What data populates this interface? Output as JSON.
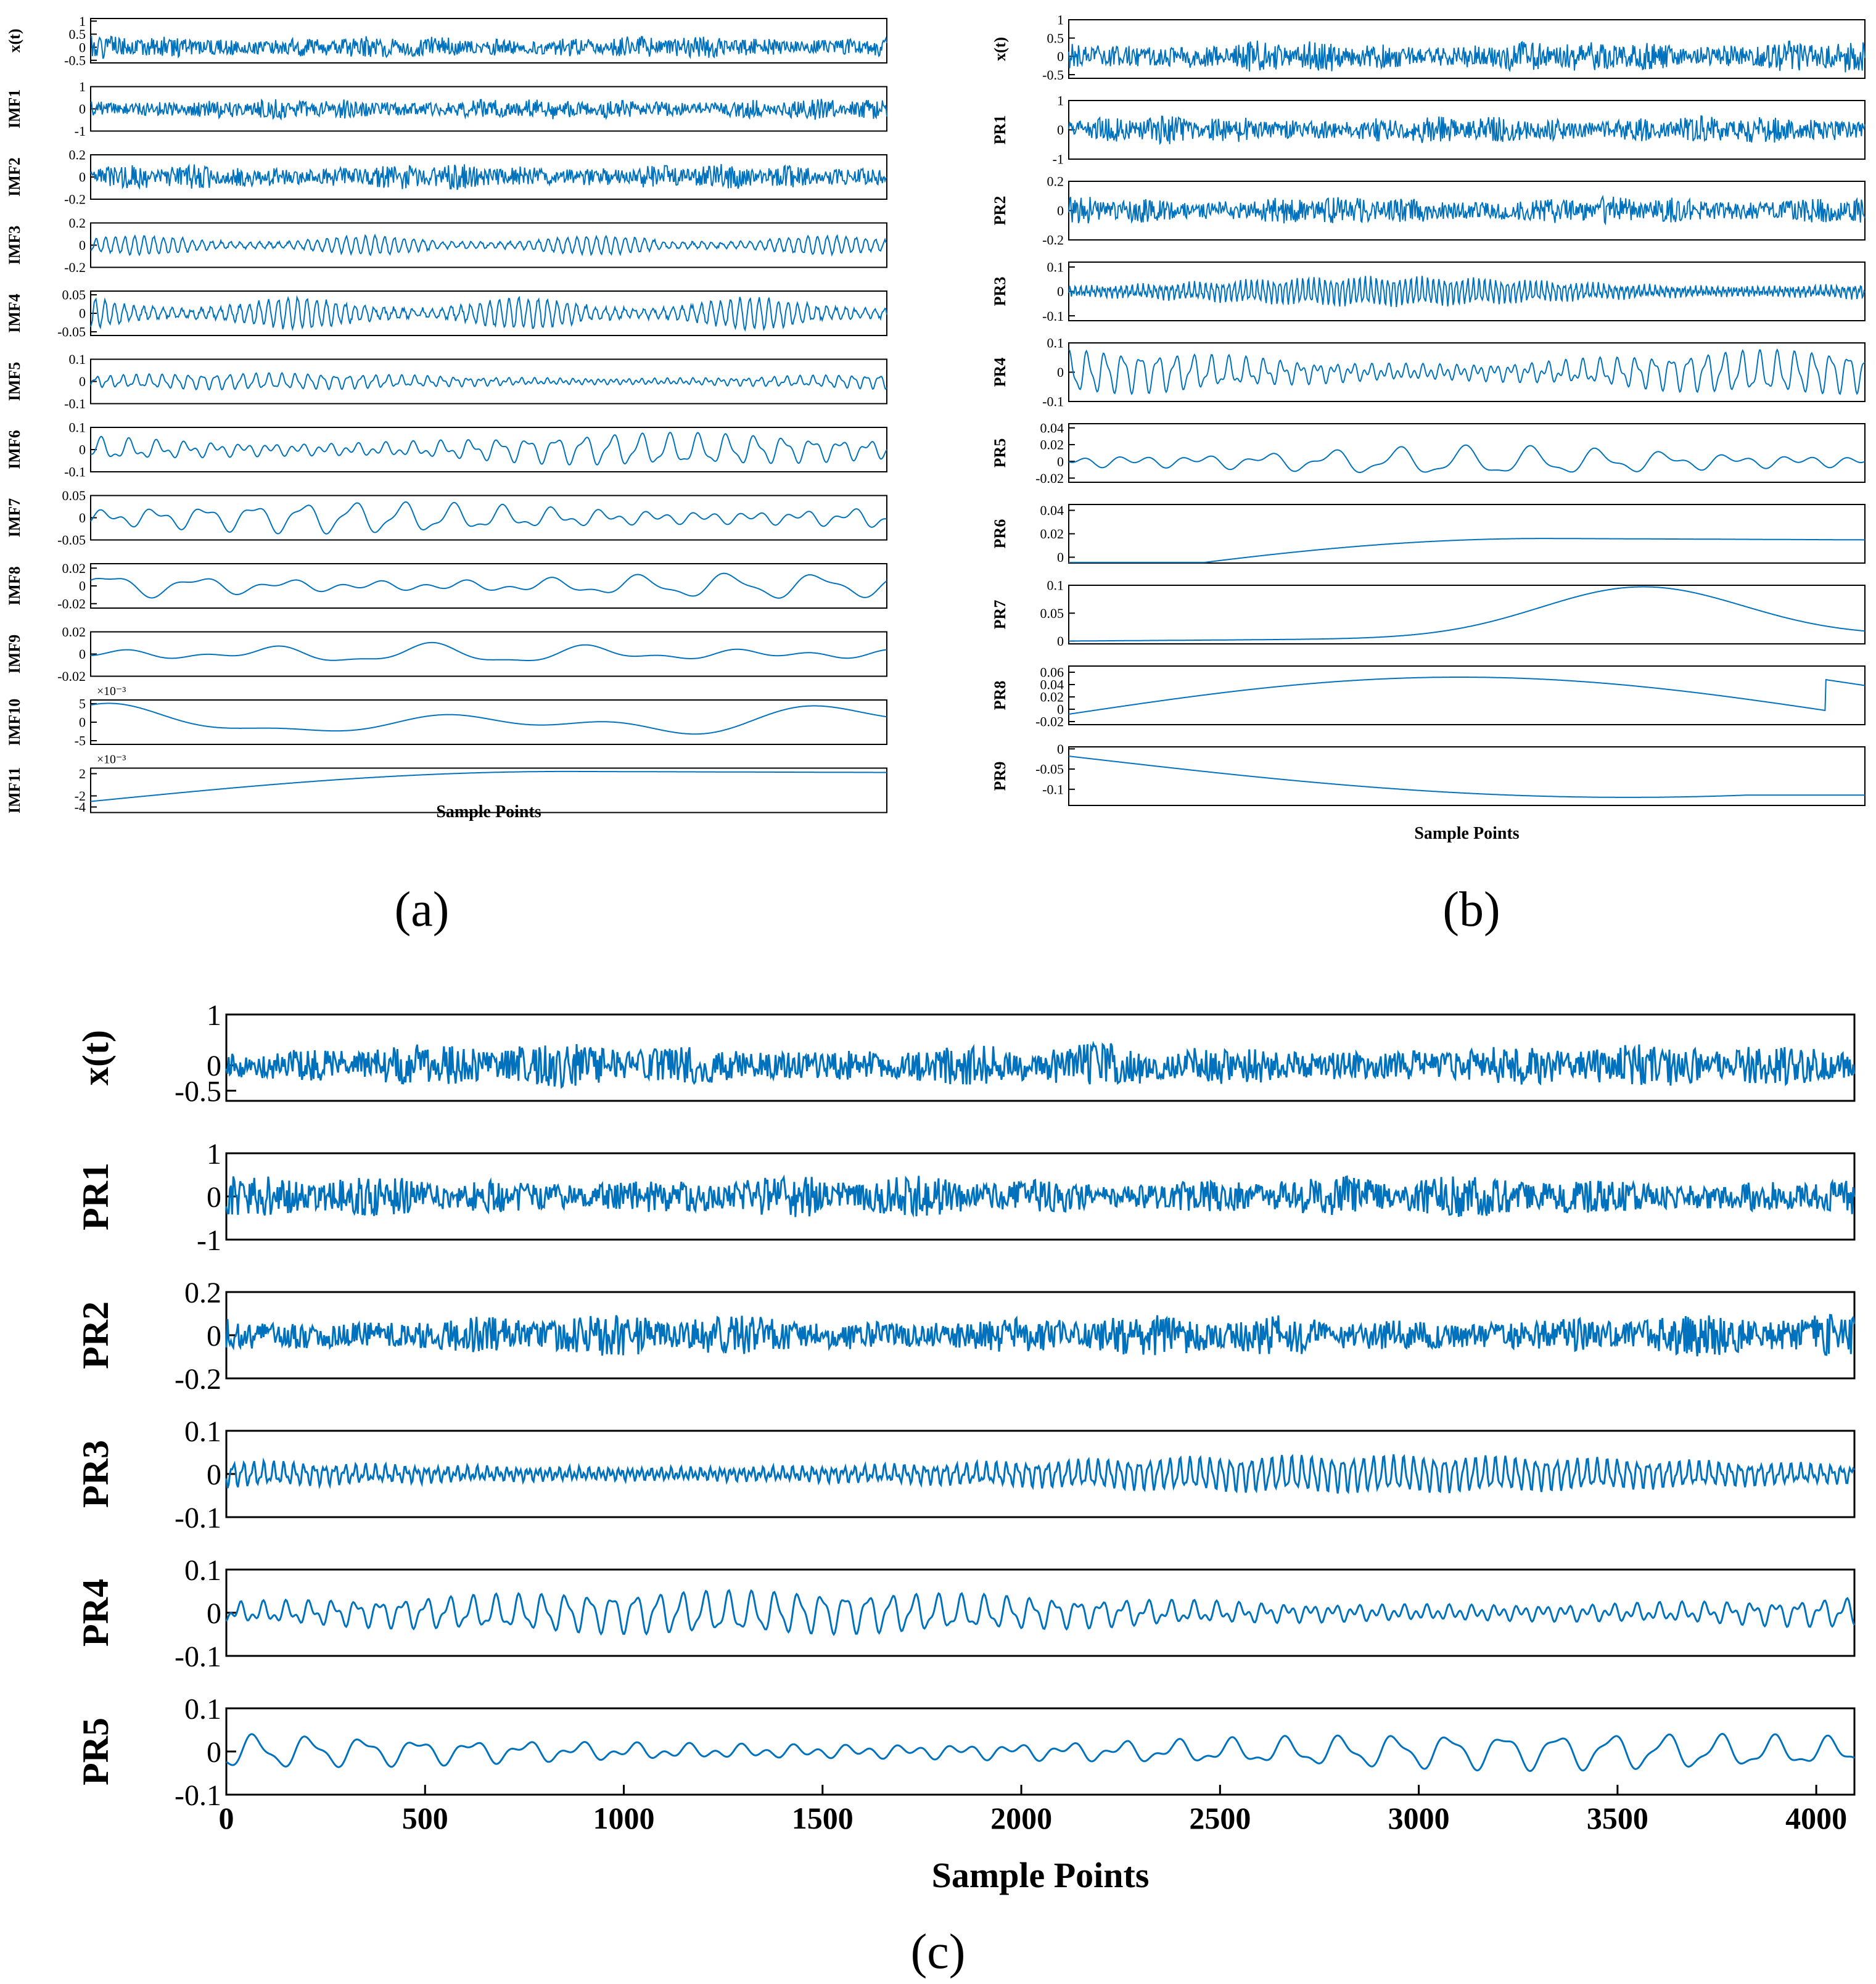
{
  "figure": {
    "color": "#0072BD",
    "panel_labels": {
      "a": "(a)",
      "b": "(b)",
      "c": "(c)"
    }
  },
  "chart_data": [
    {
      "panel": "a",
      "type": "line",
      "xlabel": "Sample Points",
      "x_range": [
        0,
        4096
      ],
      "xticks_shown": false,
      "signal_kind": "decomposition",
      "subplots": [
        {
          "label": "x(t)",
          "yticks": [
            "1",
            "0.5",
            "0",
            "-0.5"
          ],
          "ylim": [
            -0.6,
            1.1
          ],
          "wave": "noise",
          "amp": 0.45,
          "seed": 1
        },
        {
          "label": "IMF1",
          "yticks": [
            "1",
            "0",
            "-1"
          ],
          "ylim": [
            -1,
            1
          ],
          "wave": "noise",
          "amp": 0.5,
          "seed": 2
        },
        {
          "label": "IMF2",
          "yticks": [
            "0.2",
            "0",
            "-0.2"
          ],
          "ylim": [
            -0.2,
            0.2
          ],
          "wave": "noise",
          "amp": 0.12,
          "seed": 3
        },
        {
          "label": "IMF3",
          "yticks": [
            "0.2",
            "0",
            "-0.2"
          ],
          "ylim": [
            -0.2,
            0.2
          ],
          "wave": "burst",
          "amp": 0.08,
          "seed": 4
        },
        {
          "label": "IMF4",
          "yticks": [
            "0.05",
            "0",
            "-0.05"
          ],
          "ylim": [
            -0.06,
            0.06
          ],
          "wave": "burst",
          "amp": 0.04,
          "seed": 5
        },
        {
          "label": "IMF5",
          "yticks": [
            "0.1",
            "0",
            "-0.1"
          ],
          "ylim": [
            -0.1,
            0.1
          ],
          "wave": "osc",
          "freq": 60,
          "amp": 0.03,
          "seed": 6
        },
        {
          "label": "IMF6",
          "yticks": [
            "0.1",
            "0",
            "-0.1"
          ],
          "ylim": [
            -0.1,
            0.1
          ],
          "wave": "osc",
          "freq": 28,
          "amp": 0.06,
          "seed": 7
        },
        {
          "label": "IMF7",
          "yticks": [
            "0.05",
            "0",
            "-0.05"
          ],
          "ylim": [
            -0.05,
            0.05
          ],
          "wave": "osc",
          "freq": 16,
          "amp": 0.03,
          "seed": 8
        },
        {
          "label": "IMF8",
          "yticks": [
            "0.02",
            "0",
            "-0.02"
          ],
          "ylim": [
            -0.025,
            0.025
          ],
          "wave": "osc",
          "freq": 9,
          "amp": 0.012,
          "seed": 9
        },
        {
          "label": "IMF9",
          "yticks": [
            "0.02",
            "0",
            "-0.02"
          ],
          "ylim": [
            -0.02,
            0.02
          ],
          "wave": "osc",
          "freq": 5,
          "amp": 0.008,
          "seed": 10
        },
        {
          "label": "IMF10",
          "yticks": [
            "5",
            "0",
            "-5"
          ],
          "exponent": "×10⁻³",
          "ylim": [
            -6,
            6
          ],
          "wave": "osc",
          "freq": 2.2,
          "amp": 4,
          "seed": 11
        },
        {
          "label": "IMF11",
          "yticks": [
            "2",
            "-2",
            "-4"
          ],
          "exponent": "×10⁻³",
          "ylim": [
            -5,
            3
          ],
          "wave": "trend",
          "amp": 3,
          "seed": 12
        }
      ]
    },
    {
      "panel": "b",
      "type": "line",
      "xlabel": "Sample Points",
      "x_range": [
        0,
        4096
      ],
      "xticks_shown": false,
      "signal_kind": "decomposition",
      "subplots": [
        {
          "label": "x(t)",
          "yticks": [
            "1",
            "0.5",
            "0",
            "-0.5"
          ],
          "ylim": [
            -0.6,
            1.0
          ],
          "wave": "noise",
          "amp": 0.45,
          "seed": 21
        },
        {
          "label": "PR1",
          "yticks": [
            "1",
            "0",
            "-1"
          ],
          "ylim": [
            -1,
            1
          ],
          "wave": "noise",
          "amp": 0.5,
          "seed": 22
        },
        {
          "label": "PR2",
          "yticks": [
            "0.2",
            "0",
            "-0.2"
          ],
          "ylim": [
            -0.2,
            0.2
          ],
          "wave": "noise",
          "amp": 0.1,
          "seed": 23
        },
        {
          "label": "PR3",
          "yticks": [
            "0.1",
            "0",
            "-0.1"
          ],
          "ylim": [
            -0.12,
            0.12
          ],
          "wave": "osc",
          "freq": 140,
          "amp": 0.05,
          "seed": 24
        },
        {
          "label": "PR4",
          "yticks": [
            "0.1",
            "0",
            "-0.1"
          ],
          "ylim": [
            -0.1,
            0.1
          ],
          "wave": "osc",
          "freq": 45,
          "amp": 0.06,
          "seed": 25
        },
        {
          "label": "PR5",
          "yticks": [
            "0.04",
            "0.02",
            "0",
            "-0.02"
          ],
          "ylim": [
            -0.025,
            0.045
          ],
          "wave": "osc",
          "freq": 12,
          "amp": 0.015,
          "seed": 26
        },
        {
          "label": "PR6",
          "yticks": [
            "0.04",
            "0.02",
            "0"
          ],
          "ylim": [
            -0.005,
            0.045
          ],
          "wave": "trend",
          "amp": 0.02,
          "seed": 27
        },
        {
          "label": "PR7",
          "yticks": [
            "0.1",
            "0.05",
            "0"
          ],
          "ylim": [
            -0.005,
            0.1
          ],
          "wave": "hump",
          "amp": 0.09,
          "seed": 28
        },
        {
          "label": "PR8",
          "yticks": [
            "0.06",
            "0.04",
            "0.02",
            "0",
            "-0.02"
          ],
          "ylim": [
            -0.025,
            0.07
          ],
          "wave": "hump2",
          "amp": 0.08,
          "seed": 29
        },
        {
          "label": "PR9",
          "yticks": [
            "0",
            "-0.05",
            "-0.1"
          ],
          "ylim": [
            -0.14,
            0.005
          ],
          "wave": "dip",
          "amp": 0.12,
          "seed": 30
        }
      ]
    },
    {
      "panel": "c",
      "type": "line",
      "xlabel": "Sample Points",
      "x_range": [
        0,
        4096
      ],
      "xticks": [
        "0",
        "500",
        "1000",
        "1500",
        "2000",
        "2500",
        "3000",
        "3500",
        "4000"
      ],
      "xtick_values": [
        0,
        500,
        1000,
        1500,
        2000,
        2500,
        3000,
        3500,
        4000
      ],
      "subplots": [
        {
          "label": "x(t)",
          "yticks": [
            "1",
            "0",
            "-0.5"
          ],
          "ytick_values": [
            1,
            0,
            -0.5
          ],
          "ylim": [
            -0.7,
            1.0
          ],
          "wave": "noise",
          "amp": 0.45,
          "seed": 41
        },
        {
          "label": "PR1",
          "yticks": [
            "1",
            "0",
            "-1"
          ],
          "ytick_values": [
            1,
            0,
            -1
          ],
          "ylim": [
            -1,
            1
          ],
          "wave": "noise",
          "amp": 0.5,
          "seed": 42
        },
        {
          "label": "PR2",
          "yticks": [
            "0.2",
            "0",
            "-0.2"
          ],
          "ytick_values": [
            0.2,
            0,
            -0.2
          ],
          "ylim": [
            -0.2,
            0.2
          ],
          "wave": "noise",
          "amp": 0.1,
          "seed": 43
        },
        {
          "label": "PR3",
          "yticks": [
            "0.1",
            "0",
            "-0.1"
          ],
          "ytick_values": [
            0.1,
            0,
            -0.1
          ],
          "ylim": [
            -0.1,
            0.1
          ],
          "wave": "osc",
          "freq": 160,
          "amp": 0.035,
          "seed": 44
        },
        {
          "label": "PR4",
          "yticks": [
            "0.1",
            "0",
            "-0.1"
          ],
          "ytick_values": [
            0.1,
            0,
            -0.1
          ],
          "ylim": [
            -0.1,
            0.1
          ],
          "wave": "osc",
          "freq": 70,
          "amp": 0.04,
          "seed": 45
        },
        {
          "label": "PR5",
          "yticks": [
            "0.1",
            "0",
            "-0.1"
          ],
          "ytick_values": [
            0.1,
            0,
            -0.1
          ],
          "ylim": [
            -0.1,
            0.1
          ],
          "wave": "osc",
          "freq": 30,
          "amp": 0.035,
          "seed": 46
        }
      ]
    }
  ]
}
